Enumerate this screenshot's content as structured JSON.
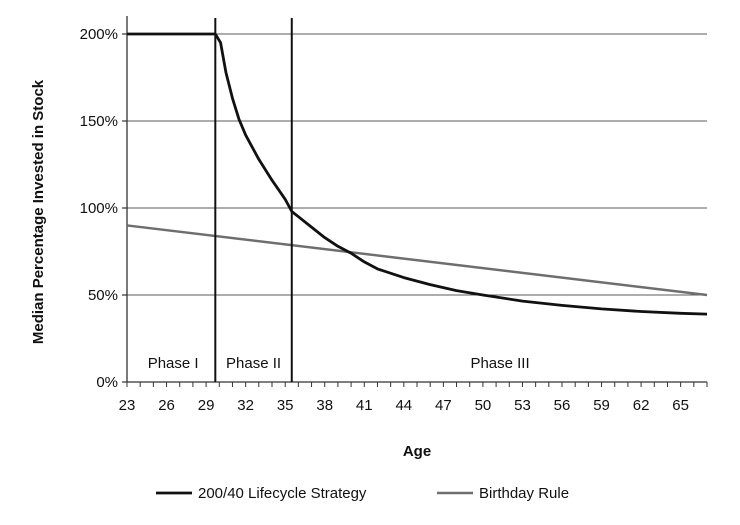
{
  "chart_data": {
    "type": "line",
    "title": "",
    "xlabel": "Age",
    "ylabel": "Median Percentage Invested in Stock",
    "xlim": [
      23,
      67
    ],
    "ylim": [
      0,
      200
    ],
    "x_ticks": [
      23,
      26,
      29,
      32,
      35,
      38,
      41,
      44,
      47,
      50,
      53,
      56,
      59,
      62,
      65
    ],
    "x_tick_labels": [
      "23",
      "26",
      "29",
      "32",
      "35",
      "38",
      "41",
      "44",
      "47",
      "50",
      "53",
      "56",
      "59",
      "62",
      "65"
    ],
    "y_ticks": [
      0,
      50,
      100,
      150,
      200
    ],
    "y_tick_labels": [
      "0%",
      "50%",
      "100%",
      "150%",
      "200%"
    ],
    "grid": "horizontal",
    "legend_position": "bottom",
    "series": [
      {
        "name": "200/40 Lifecycle Strategy",
        "color": "#111111",
        "points": [
          [
            23,
            200
          ],
          [
            29.7,
            200
          ],
          [
            30.1,
            195
          ],
          [
            30.5,
            178
          ],
          [
            31,
            163
          ],
          [
            31.5,
            151
          ],
          [
            32,
            142
          ],
          [
            33,
            128
          ],
          [
            34,
            116
          ],
          [
            35,
            105
          ],
          [
            35.5,
            98
          ],
          [
            36,
            95
          ],
          [
            37,
            89
          ],
          [
            38,
            83
          ],
          [
            39,
            78
          ],
          [
            40,
            74
          ],
          [
            41,
            69
          ],
          [
            42,
            65
          ],
          [
            44,
            60
          ],
          [
            46,
            56
          ],
          [
            48,
            52.5
          ],
          [
            50,
            50
          ],
          [
            53,
            46.5
          ],
          [
            56,
            44
          ],
          [
            59,
            42
          ],
          [
            62,
            40.5
          ],
          [
            65,
            39.5
          ],
          [
            67,
            39
          ]
        ]
      },
      {
        "name": "Birthday Rule",
        "color": "#6e6e6e",
        "points": [
          [
            23,
            90
          ],
          [
            67,
            50
          ]
        ]
      }
    ],
    "phase_boundaries": [
      29.7,
      35.5
    ],
    "phases": [
      {
        "label": "Phase I",
        "x": 26.5
      },
      {
        "label": "Phase II",
        "x": 32.6
      },
      {
        "label": "Phase III",
        "x": 51.3
      }
    ]
  }
}
